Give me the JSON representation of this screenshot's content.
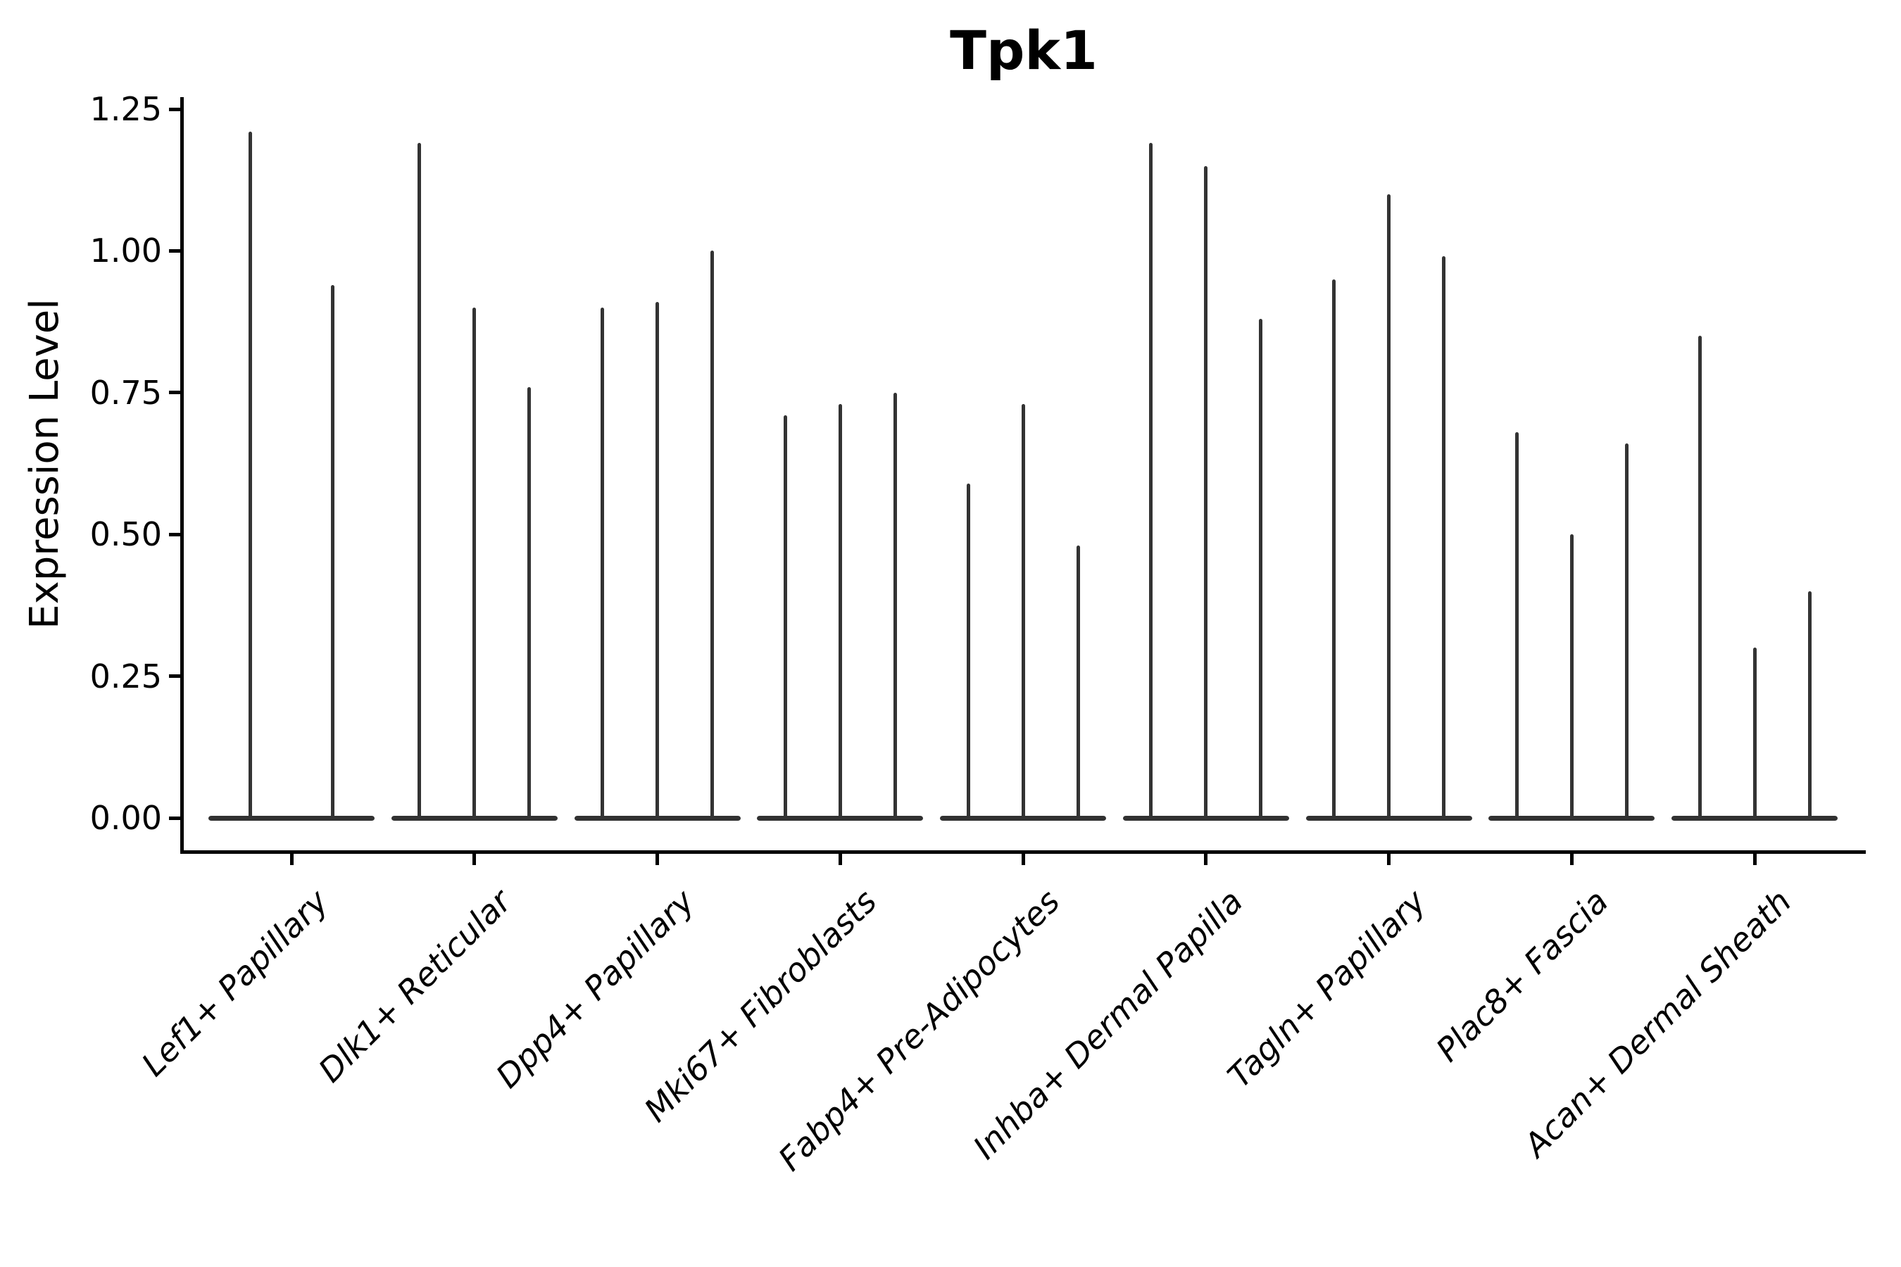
{
  "figure": {
    "title": "Tpk1",
    "y_axis_label": "Expression Level"
  },
  "chart_data": {
    "type": "violin",
    "title": "Tpk1",
    "xlabel": "",
    "ylabel": "Expression Level",
    "ylim": [
      -0.06,
      1.27
    ],
    "yticks": [
      0,
      0.25,
      0.5,
      0.75,
      1.0,
      1.25
    ],
    "ytick_labels": [
      "0.00",
      "0.25",
      "0.50",
      "0.75",
      "1.00",
      "1.25"
    ],
    "grid": false,
    "legend_position": "none",
    "categories": [
      "Lef1+ Papillary",
      "Dlk1+ Reticular",
      "Dpp4+ Papillary",
      "Mki67+ Fibroblasts",
      "Fabp4+ Pre-Adipocytes",
      "Inhba+ Dermal Papilla",
      "Tagln+ Papillary",
      "Plac8+ Fascia",
      "Acan+ Dermal Sheath"
    ],
    "violin_max_values_per_category": [
      [
        1.21,
        0.94
      ],
      [
        1.19,
        0.9,
        0.76
      ],
      [
        0.9,
        0.91,
        1.0
      ],
      [
        0.71,
        0.73,
        0.75
      ],
      [
        0.59,
        0.73,
        0.48
      ],
      [
        1.19,
        1.15,
        0.88
      ],
      [
        0.95,
        1.1,
        0.99
      ],
      [
        0.68,
        0.5,
        0.66
      ],
      [
        0.85,
        0.3,
        0.4
      ]
    ],
    "violin_baseline_value": 0.0
  },
  "style": {
    "background": "#ffffff",
    "violin_color": "#313131",
    "spike_color": "#333333",
    "axis_color": "#000000",
    "text_color": "#000000"
  }
}
